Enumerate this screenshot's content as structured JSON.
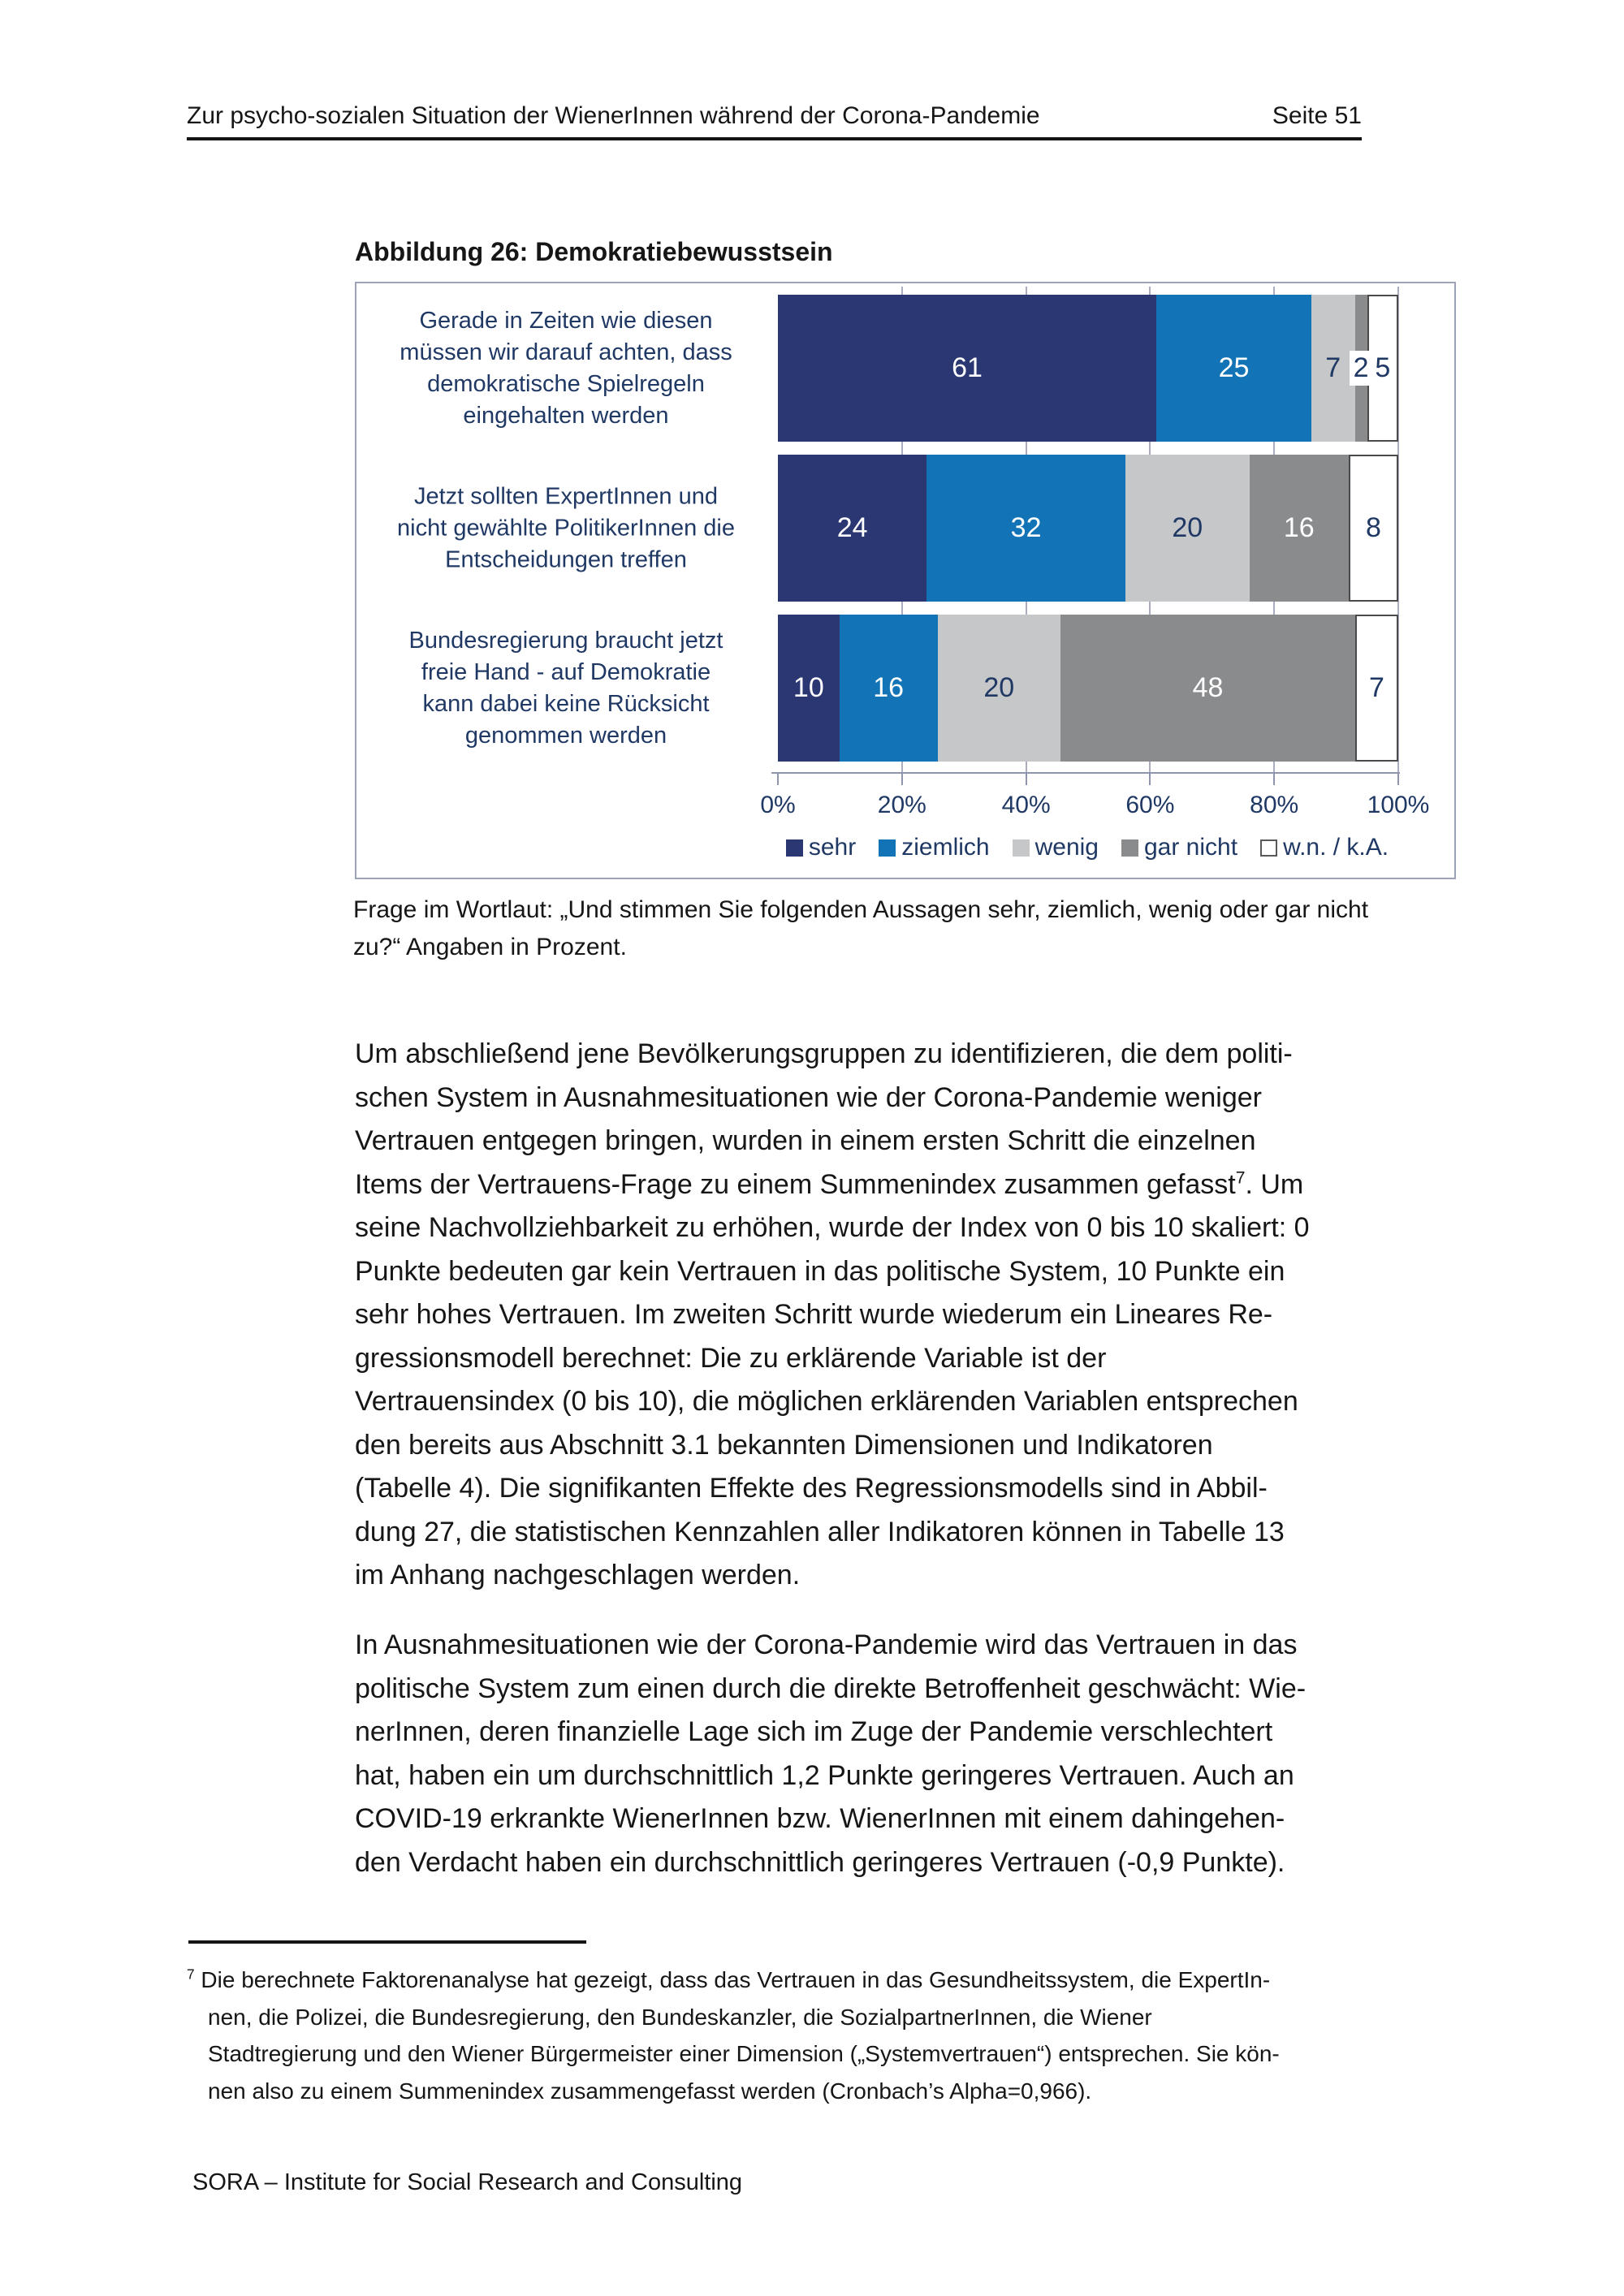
{
  "header": {
    "title": "Zur psycho-sozialen Situation der WienerInnen während der Corona-Pandemie",
    "page": "Seite 51"
  },
  "figure_title": "Abbildung 26: Demokratiebewusstsein",
  "caption": {
    "lines": [
      "Frage im Wortlaut: „Und stimmen Sie folgenden Aussagen sehr, ziemlich, wenig oder gar nicht",
      "zu?“ Angaben in Prozent."
    ]
  },
  "chart_data": {
    "type": "bar",
    "orientation": "horizontal",
    "stacked": true,
    "title": "Abbildung 26: Demokratiebewusstsein",
    "categories": [
      [
        "Gerade in Zeiten wie diesen",
        "müssen wir darauf achten, dass",
        "demokratische Spielregeln",
        "eingehalten werden"
      ],
      [
        "Jetzt sollten ExpertInnen und",
        "nicht gewählte PolitikerInnen die",
        "Entscheidungen treffen"
      ],
      [
        "Bundesregierung braucht jetzt",
        "freie Hand - auf Demokratie",
        "kann dabei keine Rücksicht",
        "genommen werden"
      ]
    ],
    "series": [
      {
        "name": "sehr",
        "color": "#2B3773",
        "label_color": "light",
        "values": [
          61,
          24,
          10
        ]
      },
      {
        "name": "ziemlich",
        "color": "#1274B6",
        "label_color": "light",
        "values": [
          25,
          32,
          16
        ]
      },
      {
        "name": "wenig",
        "color": "#C6C7C8",
        "label_color": "dark",
        "values": [
          7,
          20,
          20
        ]
      },
      {
        "name": "gar nicht",
        "color": "#8A8B8D",
        "label_color": "light",
        "values": [
          2,
          16,
          48
        ]
      },
      {
        "name": "w.n. / k.A.",
        "color": "#FFFFFF",
        "label_color": "dark",
        "values": [
          5,
          8,
          7
        ]
      }
    ],
    "x_ticks": [
      "0%",
      "20%",
      "40%",
      "60%",
      "80%",
      "100%"
    ],
    "xlim": [
      0,
      100
    ],
    "grid": true,
    "legend_position": "bottom",
    "text_color": "#1F3864"
  },
  "body": {
    "para1": [
      "Um abschließend jene Bevölkerungsgruppen zu identifizieren, die dem politi-",
      "schen System in Ausnahmesituationen wie der Corona-Pandemie weniger",
      "Vertrauen entgegen bringen, wurden in einem ersten Schritt die einzelnen",
      {
        "pre": "Items der Vertrauens-Frage zu einem Summenindex zusammen gefasst",
        "sup": "7",
        "post": ". Um"
      },
      "seine Nachvollziehbarkeit zu erhöhen, wurde der Index von 0 bis 10 skaliert: 0",
      "Punkte bedeuten gar kein Vertrauen in das politische System, 10 Punkte ein",
      "sehr hohes Vertrauen. Im zweiten Schritt wurde wiederum ein Lineares Re-",
      "gressionsmodell berechnet: Die zu erklärende Variable ist der",
      "Vertrauensindex (0 bis 10), die möglichen erklärenden Variablen entsprechen",
      "den bereits aus Abschnitt 3.1 bekannten Dimensionen und Indikatoren",
      "(Tabelle 4). Die signifikanten Effekte des Regressionsmodells sind in Abbil-",
      "dung 27, die statistischen Kennzahlen aller Indikatoren können in Tabelle 13",
      "im Anhang nachgeschlagen werden."
    ],
    "para2": [
      "In Ausnahmesituationen wie der Corona-Pandemie wird das Vertrauen in das",
      "politische System zum einen durch die direkte Betroffenheit geschwächt: Wie-",
      "nerInnen, deren finanzielle Lage sich im Zuge der Pandemie verschlechtert",
      "hat, haben ein um durchschnittlich 1,2 Punkte geringeres Vertrauen. Auch an",
      "COVID-19 erkrankte WienerInnen bzw. WienerInnen mit einem dahingehen-",
      "den Verdacht haben ein durchschnittlich geringeres Vertrauen (-0,9 Punkte)."
    ]
  },
  "footnote": {
    "lines": [
      {
        "sup": "7",
        "post": " Die berechnete Faktorenanalyse hat gezeigt, dass das Vertrauen in das Gesundheitssystem, die ExpertIn-"
      },
      "nen, die Polizei, die Bundesregierung, den Bundeskanzler, die SozialpartnerInnen, die Wiener",
      "Stadtregierung und den Wiener Bürgermeister einer Dimension („Systemvertrauen“) entsprechen. Sie kön-",
      "nen also zu einem Summenindex zusammengefasst werden (Cronbach’s Alpha=0,966)."
    ]
  },
  "footer": "SORA – Institute for Social Research and Consulting"
}
